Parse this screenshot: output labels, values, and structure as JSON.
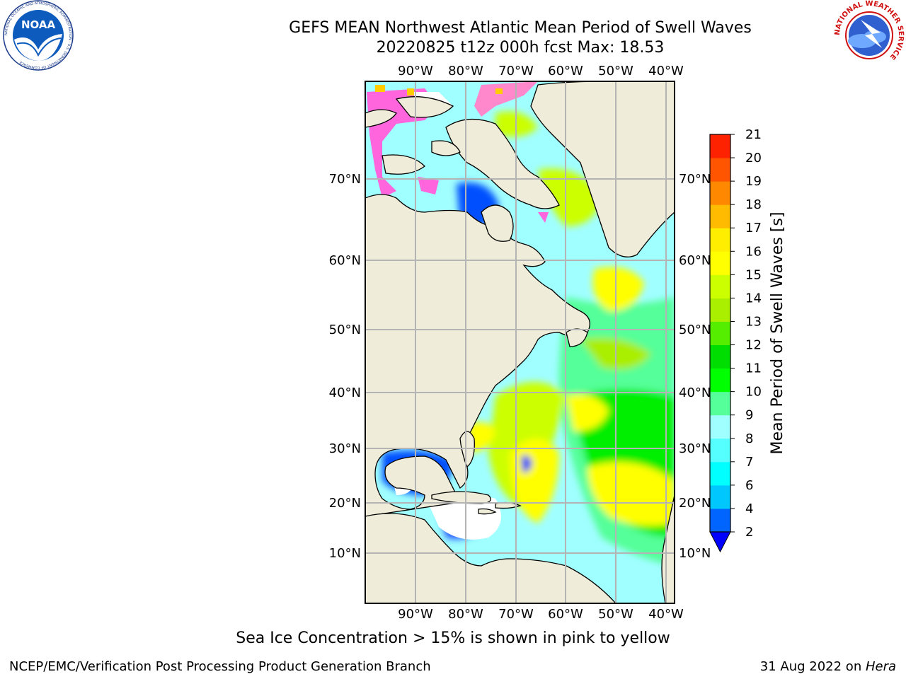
{
  "title": "GEFS MEAN Northwest Atlantic Mean Period of Swell Waves",
  "subtitle": "20220825 t12z 000h fcst   Max: 18.53",
  "caption": "Sea Ice Concentration > 15% is shown in pink to yellow",
  "credit": "NCEP/EMC/Verification Post Processing Product Generation Branch",
  "date_prefix": "31 Aug 2022 on ",
  "date_host": "Hera",
  "logos": {
    "left": {
      "name": "noaa-logo",
      "text": "NOAA",
      "ring_text": "NATIONAL OCEANIC AND ATMOSPHERIC ADMINISTRATION · U.S. DEPARTMENT OF COMMERCE"
    },
    "right": {
      "name": "nws-logo",
      "ring_text": "NATIONAL WEATHER SERVICE"
    }
  },
  "map": {
    "lon_labels": [
      "90°W",
      "80°W",
      "70°W",
      "60°W",
      "50°W",
      "40°W"
    ],
    "lat_labels": [
      "70°N",
      "60°N",
      "50°N",
      "40°N",
      "30°N",
      "20°N",
      "10°N"
    ],
    "colors": {
      "land": "#efedd9",
      "grid": "#b4b4b4",
      "coast": "#000000",
      "no_data": "#ffffff"
    }
  },
  "colorbar": {
    "label": "Mean Period of Swell Waves [s]",
    "ticks": [
      "2",
      "4",
      "6",
      "7",
      "8",
      "9",
      "10",
      "11",
      "12",
      "13",
      "14",
      "15",
      "16",
      "17",
      "18",
      "19",
      "20",
      "21"
    ],
    "colors": [
      "#0064ff",
      "#00c8ff",
      "#00ffff",
      "#55ffff",
      "#a0ffff",
      "#55ff99",
      "#00ff00",
      "#00dd00",
      "#55ee00",
      "#aaee00",
      "#ccff00",
      "#ffff00",
      "#ffee00",
      "#ffbb00",
      "#ff8800",
      "#ff5500",
      "#ff2200"
    ],
    "extend_color": "#0000ff"
  }
}
